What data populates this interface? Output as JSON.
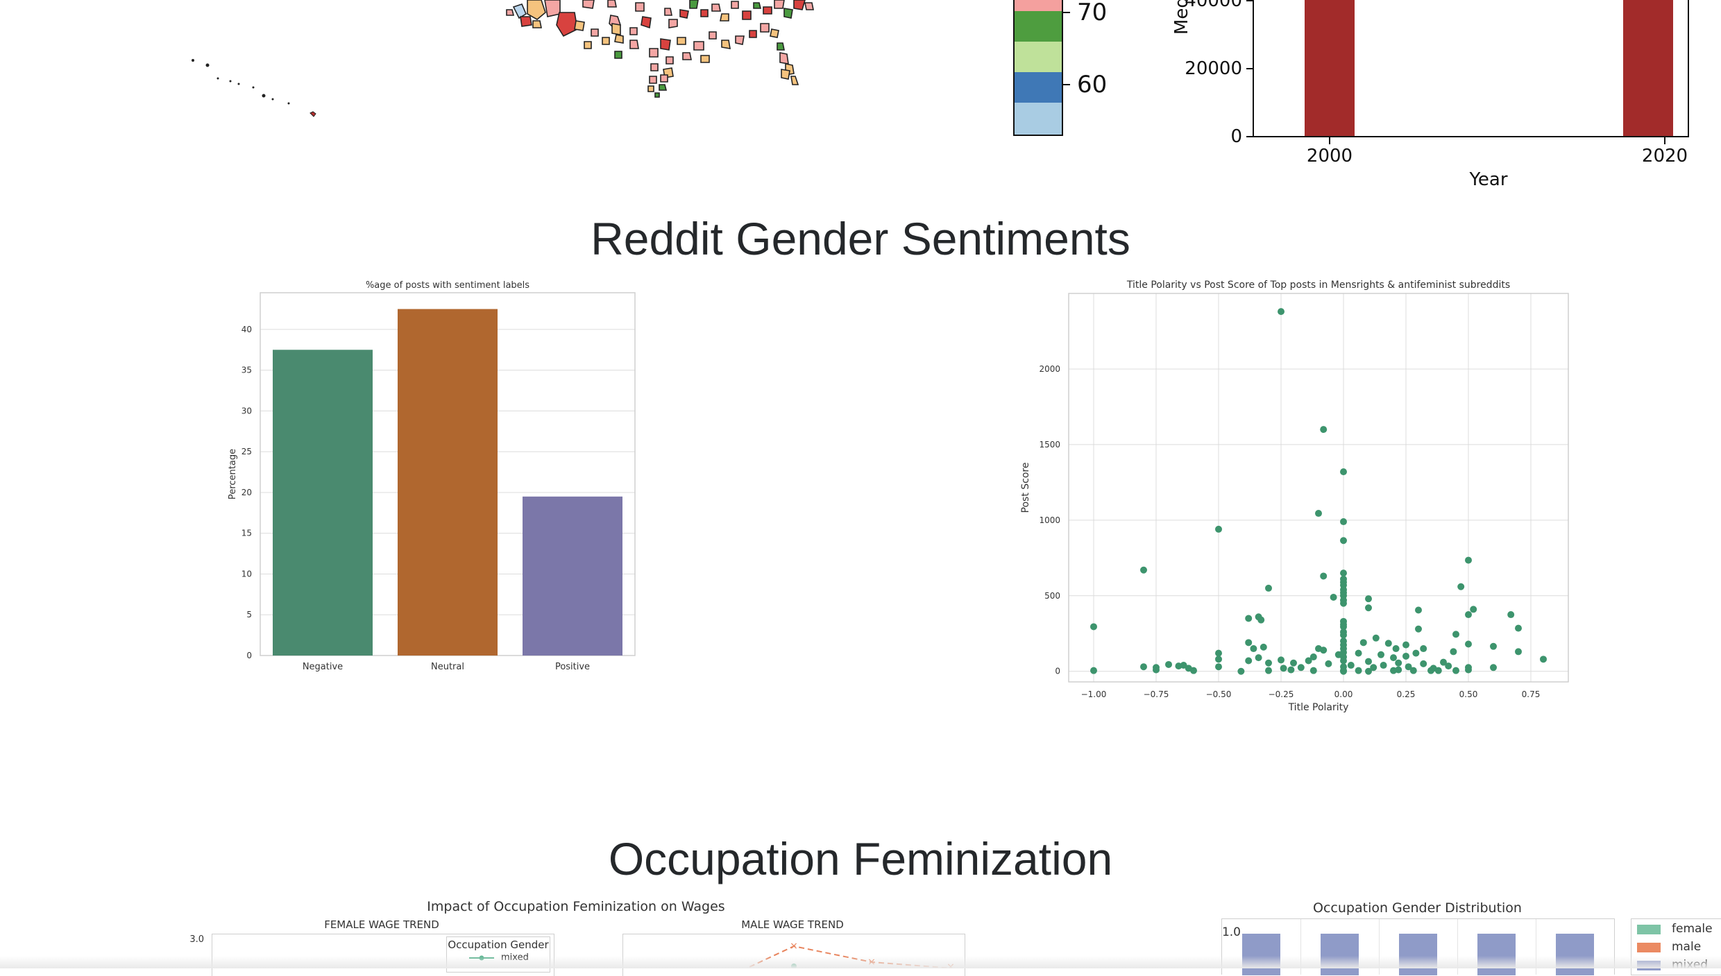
{
  "sections": {
    "reddit_title": "Reddit Gender Sentiments",
    "occupation_title": "Occupation Feminization"
  },
  "top_map": {
    "colorbar": {
      "ticks": [
        "70",
        "60"
      ],
      "colors": [
        "#f4a09e",
        "#4e9d3f",
        "#bfe19a",
        "#3f78b6",
        "#a9cce3"
      ]
    }
  },
  "top_bar": {
    "ylabel_partial": "Med",
    "yticks": [
      "40000",
      "20000",
      "0"
    ],
    "xticks": [
      "2000",
      "2020"
    ],
    "xlabel": "Year",
    "bar_color": "#a22b2a"
  },
  "chart_data": [
    {
      "type": "bar",
      "title": "%age of posts with sentiment labels",
      "ylabel": "Percentage",
      "xlabel": "",
      "categories": [
        "Negative",
        "Neutral",
        "Positive"
      ],
      "values": [
        37.5,
        42.5,
        19.5
      ],
      "colors": [
        "#4a8a6f",
        "#b0672f",
        "#7b77a9"
      ],
      "ylim": [
        0,
        44.5
      ],
      "yticks": [
        "0",
        "5",
        "10",
        "15",
        "20",
        "25",
        "30",
        "35",
        "40"
      ]
    },
    {
      "type": "scatter",
      "title": "Title Polarity vs Post Score of Top posts in Mensrights & antifeminist subreddits",
      "xlabel": "Title Polarity",
      "ylabel": "Post Score",
      "xlim": [
        -1.1,
        0.9
      ],
      "ylim": [
        -70,
        2500
      ],
      "xticks": [
        "−1.00",
        "−0.75",
        "−0.50",
        "−0.25",
        "0.00",
        "0.25",
        "0.50",
        "0.75"
      ],
      "yticks": [
        "0",
        "500",
        "1000",
        "1500",
        "2000"
      ],
      "color": "#3d946d",
      "points": [
        [
          -0.25,
          2380
        ],
        [
          -0.08,
          1600
        ],
        [
          0.0,
          1320
        ],
        [
          -0.1,
          1045
        ],
        [
          0.0,
          990
        ],
        [
          -0.5,
          940
        ],
        [
          0.0,
          865
        ],
        [
          -0.8,
          670
        ],
        [
          0.5,
          735
        ],
        [
          0.0,
          650
        ],
        [
          -0.08,
          630
        ],
        [
          0.0,
          610
        ],
        [
          0.0,
          590
        ],
        [
          0.0,
          570
        ],
        [
          0.47,
          560
        ],
        [
          -0.3,
          550
        ],
        [
          0.0,
          540
        ],
        [
          0.0,
          520
        ],
        [
          0.0,
          500
        ],
        [
          -0.04,
          490
        ],
        [
          0.1,
          480
        ],
        [
          0.0,
          470
        ],
        [
          0.0,
          450
        ],
        [
          0.1,
          420
        ],
        [
          0.52,
          410
        ],
        [
          0.3,
          405
        ],
        [
          0.5,
          375
        ],
        [
          0.67,
          375
        ],
        [
          -0.34,
          360
        ],
        [
          -0.38,
          350
        ],
        [
          -0.33,
          340
        ],
        [
          0.0,
          330
        ],
        [
          0.0,
          310
        ],
        [
          0.0,
          295
        ],
        [
          -1.0,
          295
        ],
        [
          0.7,
          285
        ],
        [
          0.3,
          280
        ],
        [
          0.45,
          245
        ],
        [
          0.0,
          260
        ],
        [
          0.0,
          240
        ],
        [
          0.13,
          220
        ],
        [
          -0.38,
          190
        ],
        [
          0.08,
          190
        ],
        [
          0.5,
          180
        ],
        [
          0.0,
          200
        ],
        [
          0.18,
          185
        ],
        [
          -0.32,
          160
        ],
        [
          0.0,
          175
        ],
        [
          0.25,
          175
        ],
        [
          0.6,
          165
        ],
        [
          -0.36,
          150
        ],
        [
          -0.1,
          150
        ],
        [
          -0.08,
          140
        ],
        [
          0.0,
          150
        ],
        [
          0.21,
          150
        ],
        [
          0.32,
          150
        ],
        [
          0.7,
          130
        ],
        [
          0.44,
          130
        ],
        [
          -0.5,
          120
        ],
        [
          0.0,
          125
        ],
        [
          0.06,
          120
        ],
        [
          0.29,
          120
        ],
        [
          -0.02,
          110
        ],
        [
          0.15,
          110
        ],
        [
          0.25,
          100
        ],
        [
          -0.12,
          95
        ],
        [
          -0.34,
          90
        ],
        [
          0.2,
          90
        ],
        [
          0.0,
          95
        ],
        [
          0.8,
          80
        ],
        [
          -0.5,
          80
        ],
        [
          -0.25,
          75
        ],
        [
          -0.38,
          70
        ],
        [
          -0.14,
          70
        ],
        [
          0.0,
          70
        ],
        [
          0.1,
          65
        ],
        [
          0.4,
          60
        ],
        [
          -0.2,
          55
        ],
        [
          -0.3,
          55
        ],
        [
          0.22,
          55
        ],
        [
          -0.06,
          50
        ],
        [
          0.32,
          50
        ],
        [
          -0.7,
          45
        ],
        [
          -0.64,
          40
        ],
        [
          0.03,
          40
        ],
        [
          0.16,
          40
        ],
        [
          0.42,
          35
        ],
        [
          -0.66,
          35
        ],
        [
          -0.5,
          30
        ],
        [
          -0.75,
          25
        ],
        [
          -0.8,
          30
        ],
        [
          0.26,
          30
        ],
        [
          0.5,
          25
        ],
        [
          0.6,
          25
        ],
        [
          -0.24,
          20
        ],
        [
          -0.17,
          25
        ],
        [
          0.0,
          30
        ],
        [
          0.12,
          25
        ],
        [
          0.36,
          20
        ],
        [
          -0.62,
          20
        ],
        [
          -0.75,
          10
        ],
        [
          0.5,
          10
        ],
        [
          0.35,
          5
        ],
        [
          -0.21,
          10
        ],
        [
          0.06,
          5
        ],
        [
          0.38,
          5
        ],
        [
          0.0,
          5
        ],
        [
          -0.6,
          5
        ],
        [
          0.22,
          10
        ],
        [
          -0.41,
          0
        ],
        [
          -1.0,
          5
        ],
        [
          -0.12,
          5
        ],
        [
          0.0,
          0
        ],
        [
          -0.3,
          5
        ],
        [
          0.1,
          0
        ],
        [
          0.2,
          5
        ],
        [
          0.28,
          5
        ],
        [
          0.45,
          5
        ]
      ]
    },
    {
      "type": "line",
      "title": "Impact of Occupation Feminization on Wages",
      "panels": [
        {
          "title": "FEMALE WAGE TREND",
          "ytick_top": "3.0"
        },
        {
          "title": "MALE WAGE TREND"
        }
      ],
      "legend": {
        "title": "Occupation Gender",
        "entries": [
          "mixed"
        ]
      }
    },
    {
      "type": "bar",
      "title": "Occupation Gender Distribution",
      "ytick_top": "1.0",
      "legend": [
        "female",
        "male",
        "mixed"
      ],
      "colors": [
        "#7ec4a6",
        "#eb8a62",
        "#8f9bc8"
      ]
    }
  ]
}
